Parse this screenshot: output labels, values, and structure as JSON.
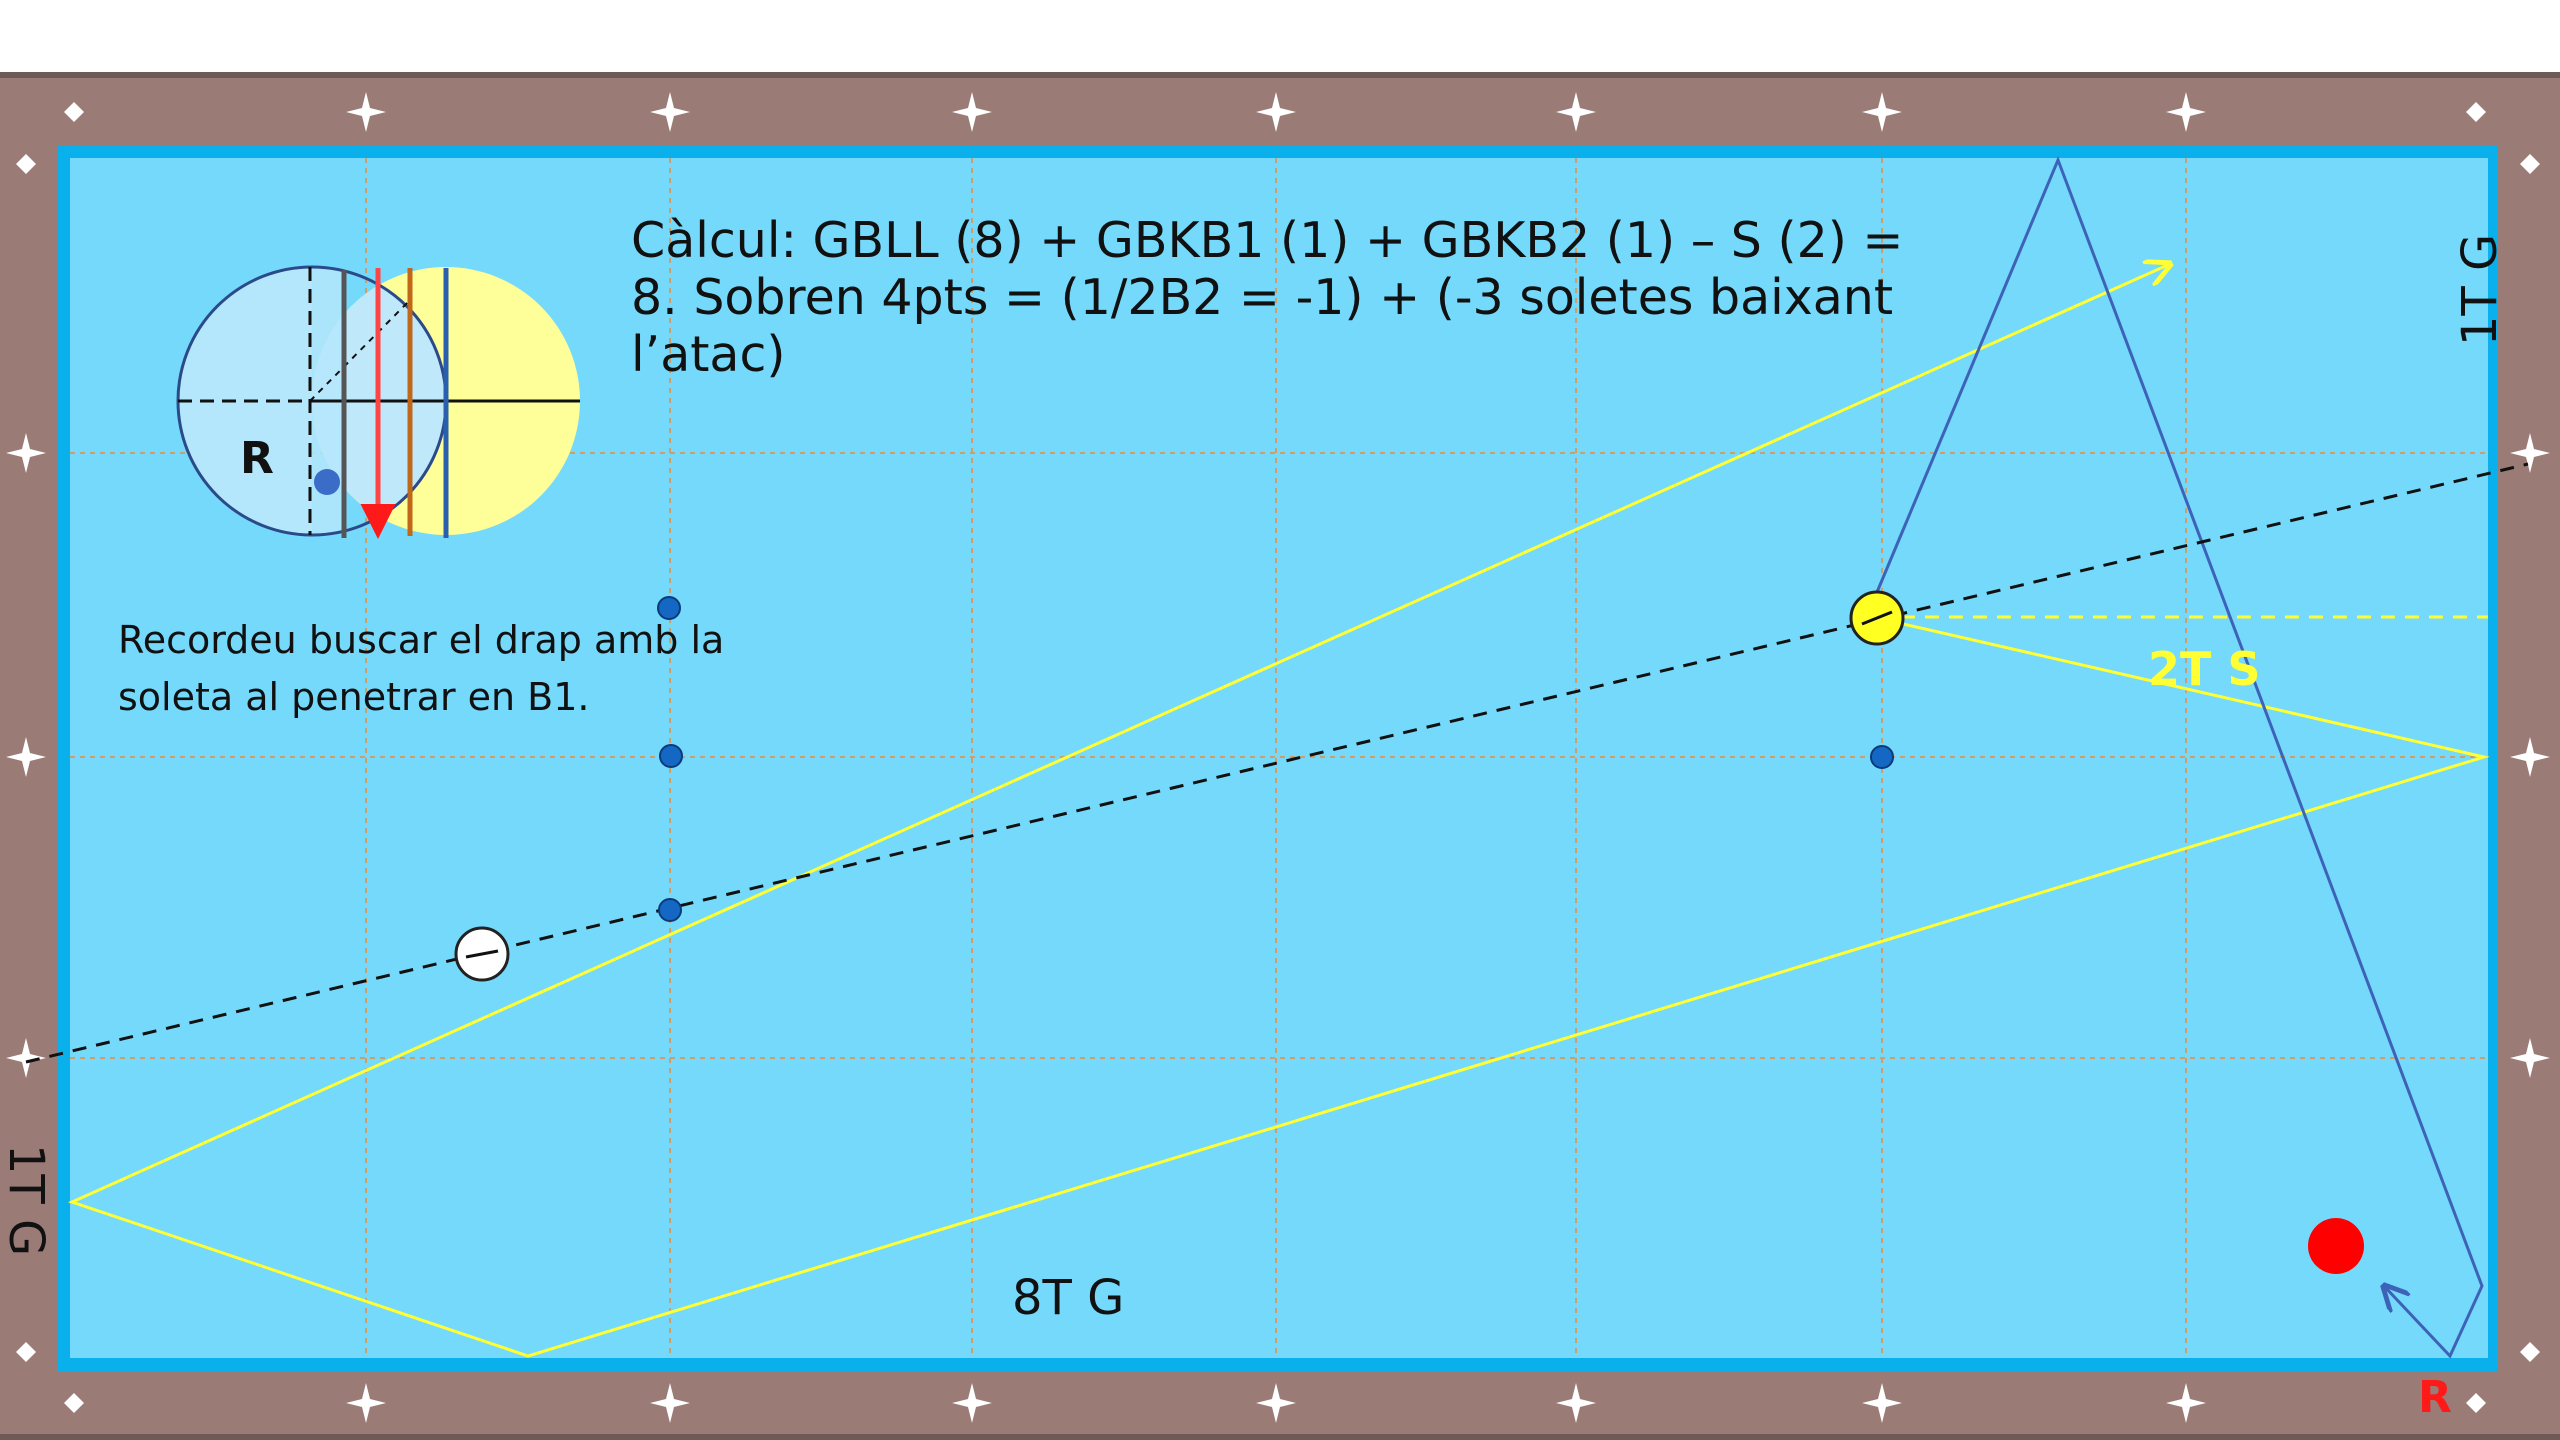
{
  "calculation_text": "Càlcul: GBLL (8) + GBKB1 (1) + GBKB2 (1) – S (2) = 8. Sobren 4pts = (1/2B2 = -1) + (-3 soletes baixant l’atac)",
  "note_text": "Recordeu buscar el drap amb la soleta al penetrar en B1.",
  "labels": {
    "right_rail": "1T G",
    "left_rail": "1T G",
    "bottom": "8T G",
    "yellow_path": "2T S",
    "inset_ball": "R",
    "corner_ball": "R"
  },
  "colors": {
    "rail": "#9b7b76",
    "cloth": "#74d9fb",
    "cushion": "#0ab0ec",
    "grid": "#c8a070",
    "yellow_path": "#ffff33",
    "blue_path": "#3d63b8",
    "aim_line": "#111111",
    "red_ball": "#ff0000",
    "yellow_ball": "#ffff22",
    "white_ball": "#ffffff"
  },
  "icons": [
    "diamond-marker-icon",
    "star-marker-icon",
    "ball-contact-diagram-icon"
  ]
}
